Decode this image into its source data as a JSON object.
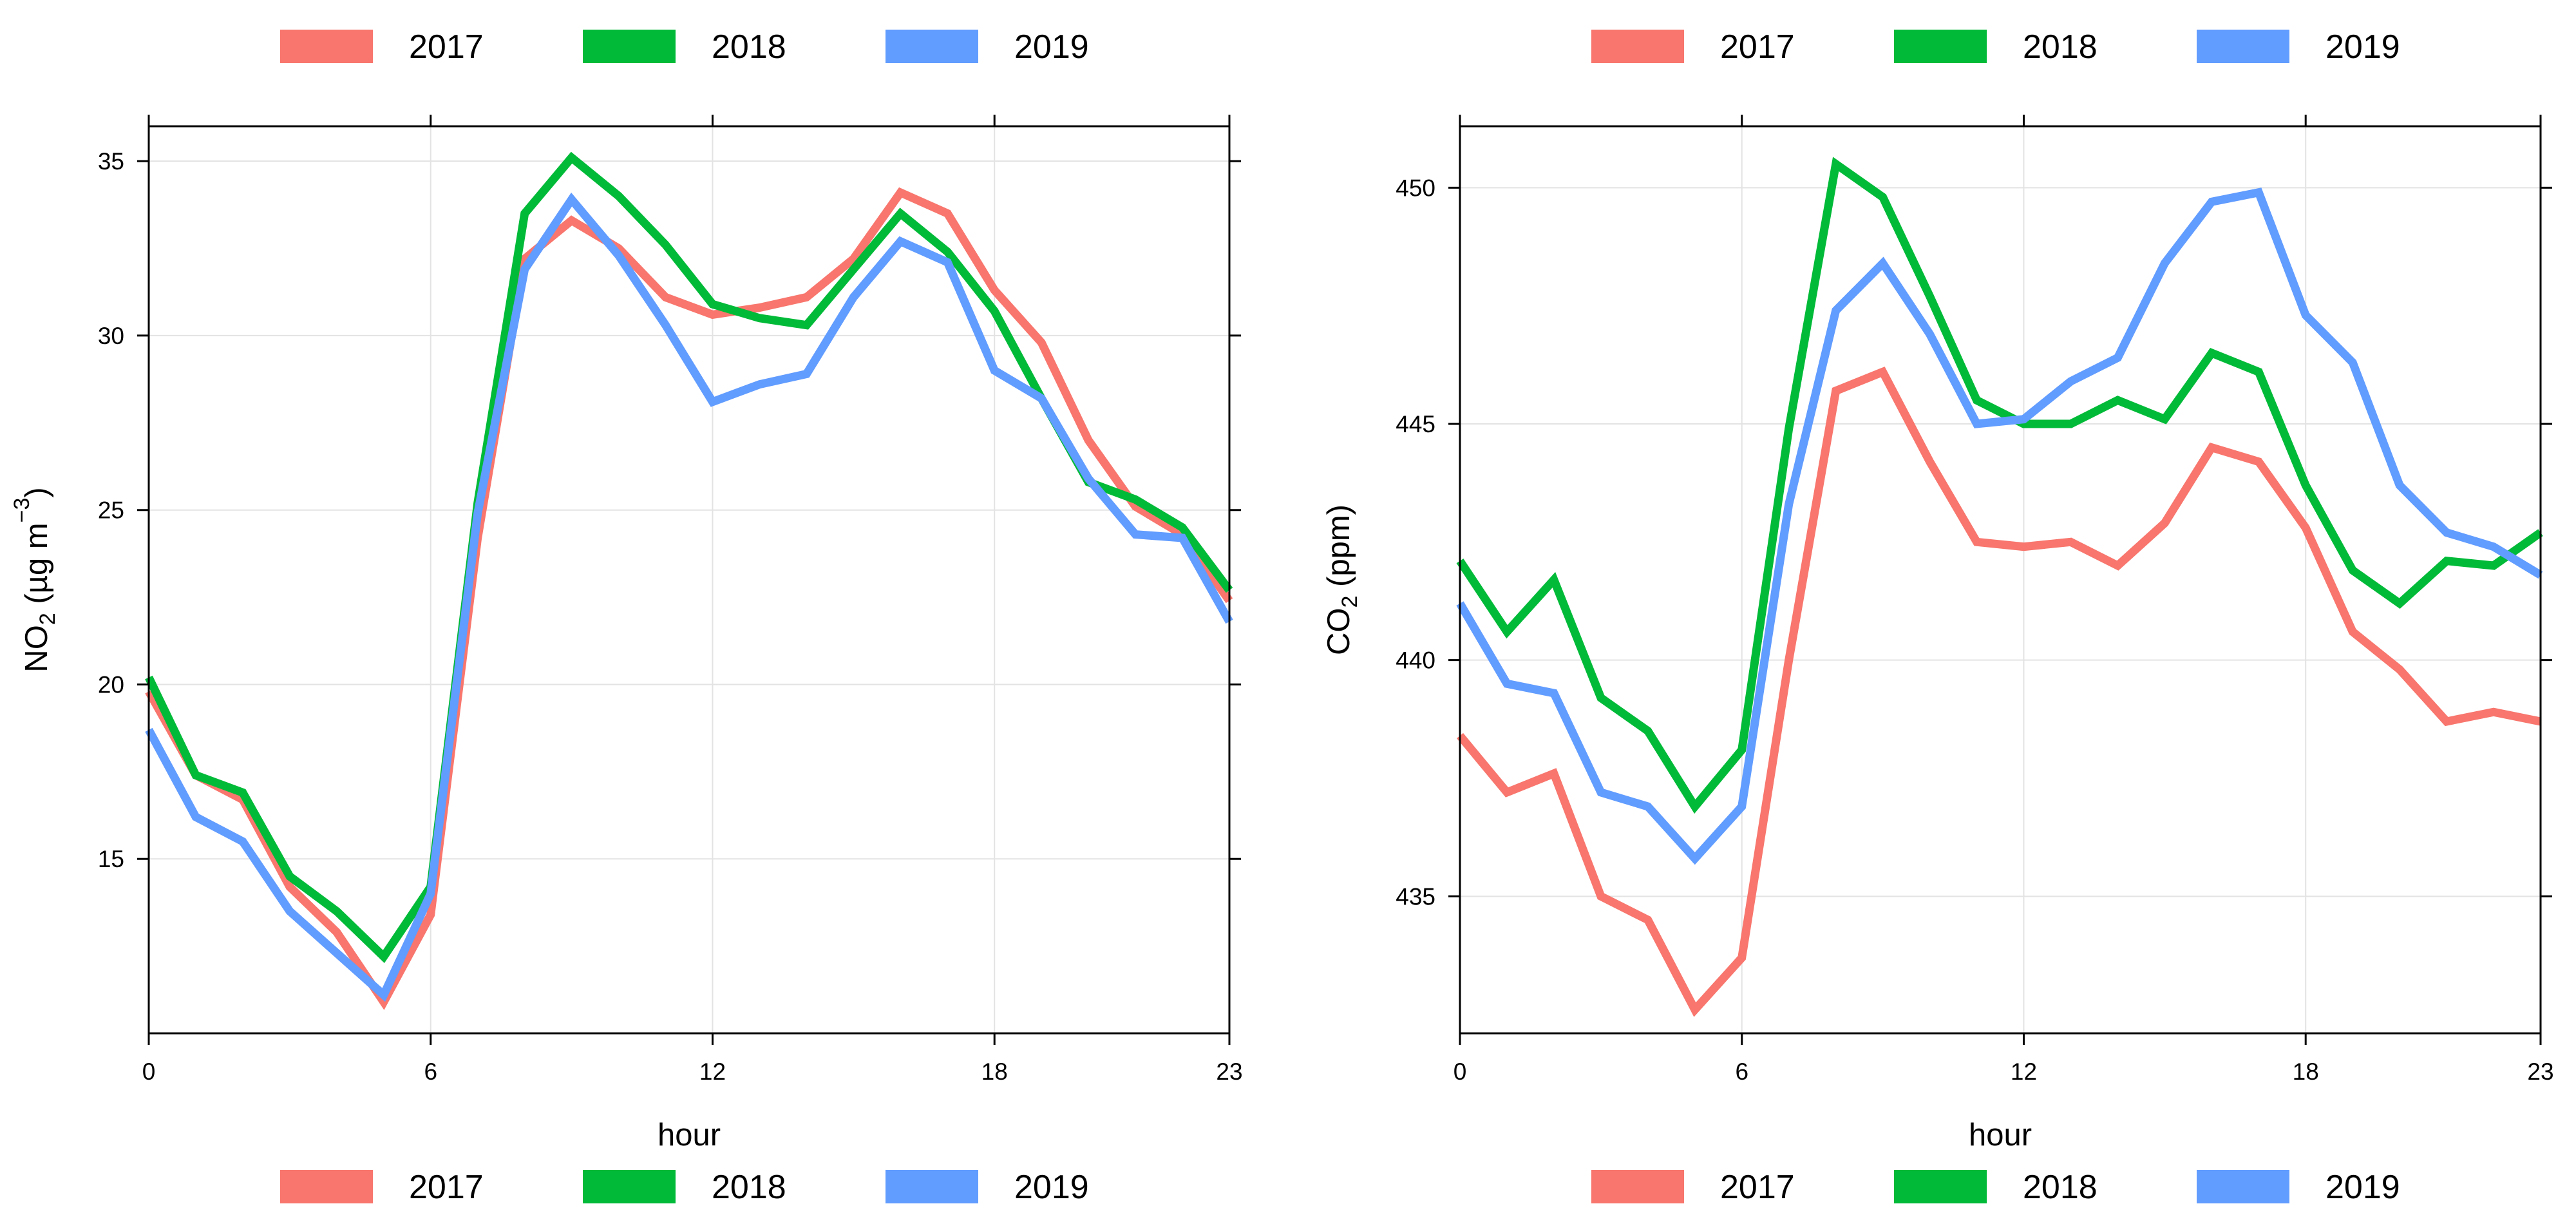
{
  "chart_data": [
    {
      "type": "line",
      "title": "",
      "xlabel": "hour",
      "ylabel": {
        "prefix": "NO",
        "sub": "2",
        "mid": " (µg m",
        "sup": "−3",
        "suffix": ")"
      },
      "xlim": [
        0,
        23
      ],
      "ylim": [
        10,
        36
      ],
      "xticks": [
        "0",
        "6",
        "12",
        "18",
        "23"
      ],
      "yticks": [
        "15",
        "20",
        "25",
        "30",
        "35"
      ],
      "grid": true,
      "legend_position": "top and bottom",
      "x": [
        0,
        1,
        2,
        3,
        4,
        5,
        6,
        7,
        8,
        9,
        10,
        11,
        12,
        13,
        14,
        15,
        16,
        17,
        18,
        19,
        20,
        21,
        22,
        23
      ],
      "series": [
        {
          "name": "2017",
          "color": "#F8766D",
          "values": [
            19.8,
            17.4,
            16.7,
            14.2,
            12.9,
            10.9,
            13.4,
            24.2,
            32.2,
            33.3,
            32.5,
            31.1,
            30.6,
            30.8,
            31.1,
            32.2,
            34.1,
            33.5,
            31.3,
            29.8,
            27.0,
            25.1,
            24.3,
            22.4
          ]
        },
        {
          "name": "2018",
          "color": "#00BA38",
          "values": [
            20.2,
            17.4,
            16.9,
            14.5,
            13.5,
            12.2,
            14.2,
            25.2,
            33.5,
            35.1,
            34.0,
            32.6,
            30.9,
            30.5,
            30.3,
            31.9,
            33.5,
            32.4,
            30.7,
            28.2,
            25.8,
            25.3,
            24.5,
            22.7
          ]
        },
        {
          "name": "2019",
          "color": "#619CFF",
          "values": [
            18.7,
            16.2,
            15.5,
            13.5,
            12.3,
            11.1,
            14.0,
            24.9,
            31.9,
            33.9,
            32.3,
            30.3,
            28.1,
            28.6,
            28.9,
            31.1,
            32.7,
            32.1,
            29.0,
            28.2,
            25.9,
            24.3,
            24.2,
            21.8
          ]
        }
      ]
    },
    {
      "type": "line",
      "title": "",
      "xlabel": "hour",
      "ylabel": {
        "prefix": "CO",
        "sub": "2",
        "mid": " (ppm)",
        "sup": "",
        "suffix": ""
      },
      "xlim": [
        0,
        23
      ],
      "ylim": [
        432.1,
        451.3
      ],
      "xticks": [
        "0",
        "6",
        "12",
        "18",
        "23"
      ],
      "yticks": [
        "435",
        "440",
        "445",
        "450"
      ],
      "grid": true,
      "legend_position": "top and bottom",
      "x": [
        0,
        1,
        2,
        3,
        4,
        5,
        6,
        7,
        8,
        9,
        10,
        11,
        12,
        13,
        14,
        15,
        16,
        17,
        18,
        19,
        20,
        21,
        22,
        23
      ],
      "series": [
        {
          "name": "2017",
          "color": "#F8766D",
          "values": [
            438.4,
            437.2,
            437.6,
            435.0,
            434.5,
            432.6,
            433.7,
            440.0,
            445.7,
            446.1,
            444.2,
            442.5,
            442.4,
            442.5,
            442.0,
            442.9,
            444.5,
            444.2,
            442.8,
            440.6,
            439.8,
            438.7,
            438.9,
            438.7
          ]
        },
        {
          "name": "2018",
          "color": "#00BA38",
          "values": [
            442.1,
            440.6,
            441.7,
            439.2,
            438.5,
            436.9,
            438.1,
            444.9,
            450.5,
            449.8,
            447.7,
            445.5,
            445.0,
            445.0,
            445.5,
            445.1,
            446.5,
            446.1,
            443.7,
            441.9,
            441.2,
            442.1,
            442.0,
            442.7
          ]
        },
        {
          "name": "2019",
          "color": "#619CFF",
          "values": [
            441.2,
            439.5,
            439.3,
            437.2,
            436.9,
            435.8,
            436.9,
            443.3,
            447.4,
            448.4,
            446.9,
            445.0,
            445.1,
            445.9,
            446.4,
            448.4,
            449.7,
            449.9,
            447.3,
            446.3,
            443.7,
            442.7,
            442.4,
            441.8
          ]
        }
      ]
    }
  ]
}
